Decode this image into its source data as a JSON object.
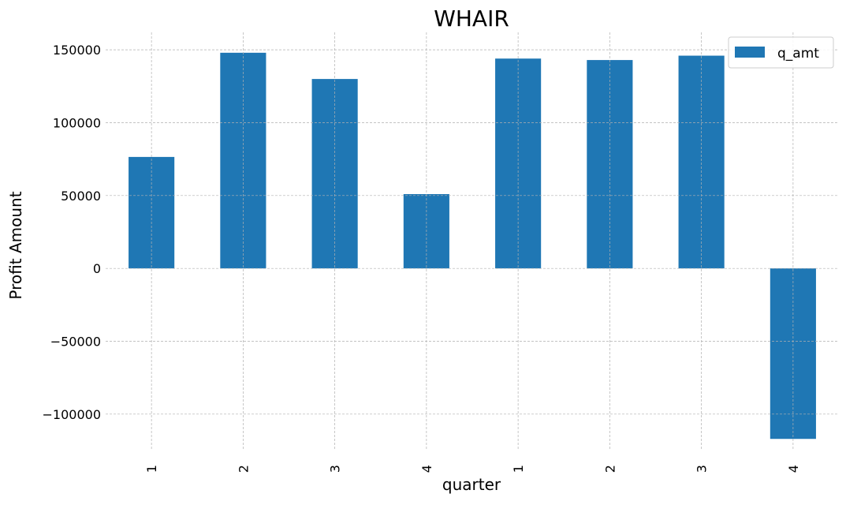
{
  "chart_data": {
    "type": "bar",
    "title": "WHAIR",
    "xlabel": "quarter",
    "ylabel": "Profit Amount",
    "categories": [
      "1",
      "2",
      "3",
      "4",
      "1",
      "2",
      "3",
      "4"
    ],
    "series": [
      {
        "name": "q_amt",
        "color": "#1f77b4",
        "values": [
          76500,
          148000,
          130000,
          51000,
          144000,
          143000,
          146000,
          -117000
        ]
      }
    ],
    "ylim": [
      -125000,
      162000
    ],
    "yticks": [
      -100000,
      -50000,
      0,
      50000,
      100000,
      150000
    ],
    "ytick_labels": [
      "−100000",
      "−50000",
      "0",
      "50000",
      "100000",
      "150000"
    ],
    "grid": true,
    "legend_position": "top-right",
    "xtick_rotation": "vertical"
  }
}
